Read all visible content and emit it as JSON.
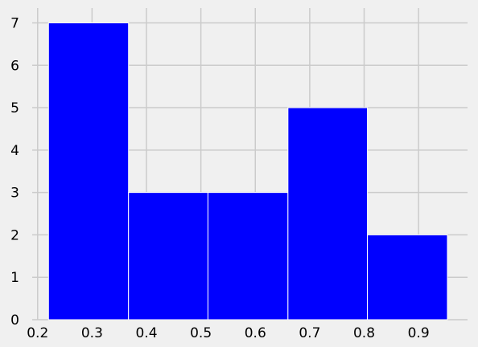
{
  "chart_data": {
    "type": "bar",
    "subtype": "histogram",
    "bins": [
      {
        "x0": 0.22,
        "x1": 0.367,
        "count": 7
      },
      {
        "x0": 0.367,
        "x1": 0.513,
        "count": 3
      },
      {
        "x0": 0.513,
        "x1": 0.66,
        "count": 3
      },
      {
        "x0": 0.66,
        "x1": 0.806,
        "count": 5
      },
      {
        "x0": 0.806,
        "x1": 0.953,
        "count": 2
      }
    ],
    "xlim": [
      0.19,
      0.99
    ],
    "ylim": [
      0,
      7.35
    ],
    "xticks": [
      0.2,
      0.3,
      0.4,
      0.5,
      0.6,
      0.7,
      0.8,
      0.9
    ],
    "yticks": [
      0,
      1,
      2,
      3,
      4,
      5,
      6,
      7
    ],
    "xtick_labels": [
      "0.2",
      "0.3",
      "0.4",
      "0.5",
      "0.6",
      "0.7",
      "0.8",
      "0.9"
    ],
    "ytick_labels": [
      "0",
      "1",
      "2",
      "3",
      "4",
      "5",
      "6",
      "7"
    ],
    "title": "",
    "xlabel": "",
    "ylabel": "",
    "grid": true,
    "bar_color": "#0000ff",
    "bar_edge_color": "#ffffff",
    "grid_color": "#cbcbcb",
    "background_color": "#f0f0f0"
  }
}
